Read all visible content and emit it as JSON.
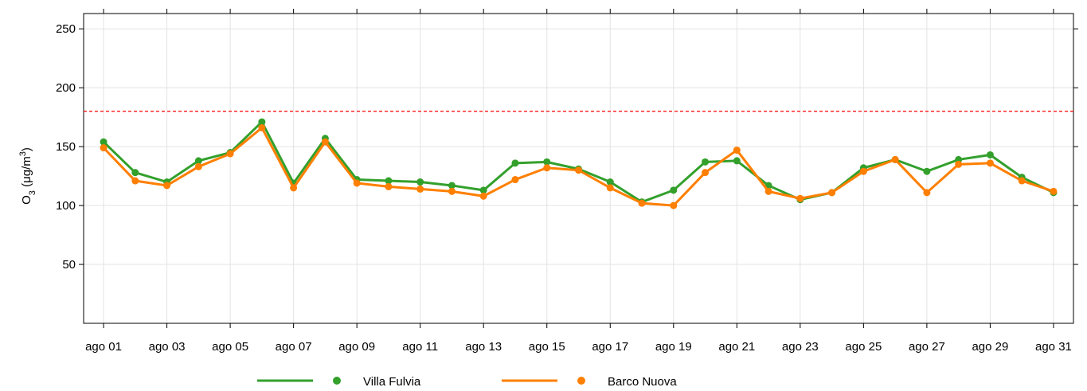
{
  "chart_data": {
    "type": "line",
    "ylabel": {
      "base": "O",
      "sub": "3",
      "unit": " (μg/m",
      "sup": "3",
      "close": ")"
    },
    "categories": [
      "ago 01",
      null,
      "ago 03",
      null,
      "ago 05",
      null,
      "ago 07",
      null,
      "ago 09",
      null,
      "ago 11",
      null,
      "ago 13",
      null,
      "ago 15",
      null,
      "ago 17",
      null,
      "ago 19",
      null,
      "ago 21",
      null,
      "ago 23",
      null,
      "ago 25",
      null,
      "ago 27",
      null,
      "ago 29",
      null,
      "ago 31"
    ],
    "series": [
      {
        "name": "Villa Fulvia",
        "color": "#33a02c",
        "values": [
          154,
          128,
          120,
          138,
          145,
          171,
          119,
          157,
          122,
          121,
          120,
          117,
          113,
          136,
          137,
          131,
          120,
          103,
          113,
          137,
          138,
          117,
          105,
          111,
          132,
          139,
          129,
          139,
          143,
          124,
          111
        ]
      },
      {
        "name": "Barco Nuova",
        "color": "#ff7f00",
        "values": [
          149,
          121,
          117,
          133,
          144,
          166,
          115,
          154,
          119,
          116,
          114,
          112,
          108,
          122,
          132,
          130,
          115,
          102,
          100,
          128,
          147,
          112,
          106,
          111,
          129,
          139,
          111,
          135,
          136,
          121,
          112
        ]
      }
    ],
    "ylim": [
      0,
      263
    ],
    "yticks": [
      50,
      100,
      150,
      200,
      250
    ],
    "grid": true,
    "reference_line": {
      "value": 180,
      "color": "#ff0000"
    },
    "legend": "bottom"
  }
}
